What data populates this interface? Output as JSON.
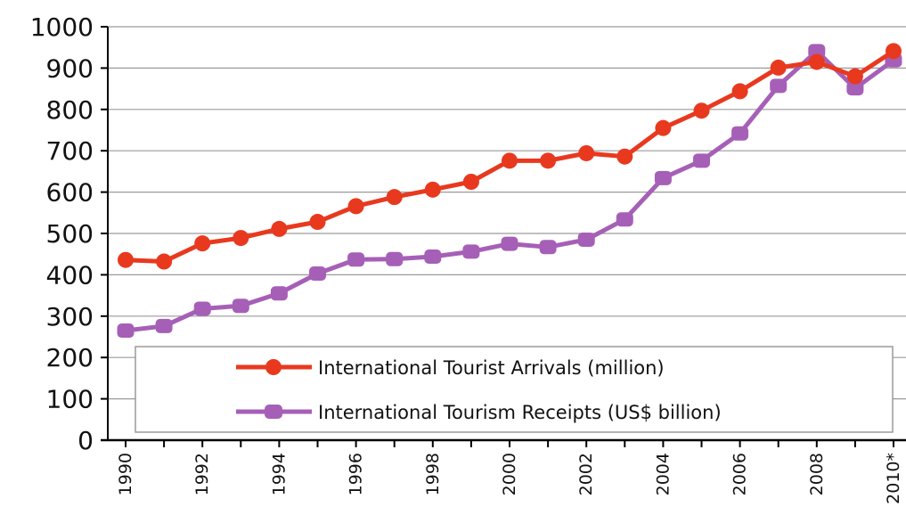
{
  "chart_data": {
    "type": "line",
    "title": "",
    "xlabel": "",
    "ylabel": "",
    "ylim": [
      0,
      1000
    ],
    "yticks": [
      0,
      100,
      200,
      300,
      400,
      500,
      600,
      700,
      800,
      900,
      1000
    ],
    "x": [
      1990,
      1991,
      1992,
      1993,
      1994,
      1995,
      1996,
      1997,
      1998,
      1999,
      2000,
      2001,
      2002,
      2003,
      2004,
      2005,
      2006,
      2007,
      2008,
      2009,
      2010
    ],
    "x_tick_labels": [
      "1990",
      "1992",
      "1994",
      "1996",
      "1998",
      "2000",
      "2002",
      "2004",
      "2006",
      "2008",
      "2010*"
    ],
    "x_tick_values": [
      1990,
      1992,
      1994,
      1996,
      1998,
      2000,
      2002,
      2004,
      2006,
      2008,
      2010
    ],
    "grid": "horizontal",
    "legend_position": "bottom-center",
    "series": [
      {
        "name": "International Tourist Arrivals (million)",
        "color": "#e8391f",
        "values": [
          436,
          432,
          476,
          489,
          511,
          528,
          566,
          588,
          606,
          625,
          676,
          676,
          694,
          686,
          755,
          797,
          844,
          901,
          915,
          880,
          941
        ]
      },
      {
        "name": "International Tourism Receipts (US$ billion)",
        "color": "#a65fb7",
        "values": [
          265,
          276,
          318,
          325,
          355,
          403,
          437,
          438,
          444,
          456,
          475,
          467,
          485,
          534,
          634,
          676,
          742,
          857,
          941,
          851,
          919
        ]
      }
    ]
  }
}
